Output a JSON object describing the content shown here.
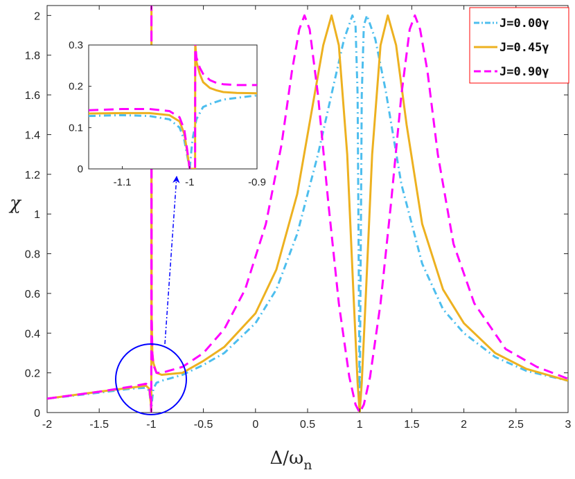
{
  "chart_data": {
    "type": "line",
    "xlabel": "Δ/ω",
    "xlabel_sub": "n",
    "ylabel": "χ",
    "xlim": [
      -2,
      3
    ],
    "ylim": [
      0,
      2.05
    ],
    "xticks": [
      "-2",
      "-1.5",
      "-1",
      "-0.5",
      "0",
      "0.5",
      "1",
      "1.5",
      "2",
      "2.5",
      "3"
    ],
    "yticks": [
      "0",
      "0.2",
      "0.4",
      "0.6",
      "0.8",
      "1",
      "1.2",
      "1.4",
      "1.6",
      "1.8",
      "2"
    ],
    "grid": false,
    "legend_position": "top-right",
    "series": [
      {
        "name": "J=0.00γ",
        "color": "#4dbeee",
        "style": "dash-dot",
        "x": [
          -2,
          -1.5,
          -1.2,
          -1.05,
          -1.02,
          -1.005,
          -1.0,
          -0.995,
          -0.98,
          -0.95,
          -0.9,
          -0.7,
          -0.5,
          -0.3,
          0,
          0.2,
          0.4,
          0.6,
          0.75,
          0.85,
          0.93,
          0.96,
          0.98,
          0.99,
          1.0,
          1.01,
          1.02,
          1.04,
          1.07,
          1.15,
          1.25,
          1.4,
          1.6,
          1.8,
          2.0,
          2.3,
          2.6,
          3.0
        ],
        "y": [
          0.07,
          0.1,
          0.12,
          0.125,
          0.11,
          0.05,
          0.0,
          0.05,
          0.12,
          0.15,
          0.16,
          0.19,
          0.24,
          0.3,
          0.45,
          0.62,
          0.9,
          1.3,
          1.65,
          1.88,
          2.0,
          1.95,
          1.6,
          0.8,
          0.0,
          0.8,
          1.6,
          1.95,
          2.0,
          1.88,
          1.62,
          1.15,
          0.75,
          0.52,
          0.4,
          0.28,
          0.21,
          0.16
        ]
      },
      {
        "name": "J=0.45γ",
        "color": "#edb120",
        "style": "solid",
        "x": [
          -2,
          -1.5,
          -1.2,
          -1.05,
          -1.02,
          -1.005,
          -1.0,
          -0.999,
          -0.997,
          -0.99,
          -0.98,
          -0.95,
          -0.9,
          -0.7,
          -0.5,
          -0.3,
          0,
          0.2,
          0.4,
          0.55,
          0.65,
          0.73,
          0.8,
          0.88,
          0.94,
          0.98,
          1.0,
          1.02,
          1.06,
          1.12,
          1.2,
          1.27,
          1.35,
          1.45,
          1.6,
          1.8,
          2.0,
          2.3,
          2.6,
          3.0
        ],
        "y": [
          0.07,
          0.105,
          0.125,
          0.135,
          0.12,
          0.05,
          0.0,
          2.05,
          0.5,
          0.3,
          0.25,
          0.2,
          0.19,
          0.2,
          0.26,
          0.33,
          0.5,
          0.72,
          1.1,
          1.55,
          1.85,
          2.0,
          1.85,
          1.3,
          0.6,
          0.15,
          0.0,
          0.15,
          0.6,
          1.3,
          1.85,
          2.0,
          1.85,
          1.45,
          0.95,
          0.62,
          0.45,
          0.3,
          0.22,
          0.16
        ]
      },
      {
        "name": "J=0.90γ",
        "color": "#ff00ff",
        "style": "dashed",
        "x": [
          -2,
          -1.5,
          -1.2,
          -1.05,
          -1.02,
          -1.005,
          -1.0,
          -0.999,
          -0.997,
          -0.99,
          -0.98,
          -0.95,
          -0.9,
          -0.7,
          -0.5,
          -0.3,
          -0.1,
          0.1,
          0.25,
          0.35,
          0.42,
          0.47,
          0.52,
          0.6,
          0.7,
          0.8,
          0.9,
          0.96,
          1.0,
          1.04,
          1.1,
          1.2,
          1.3,
          1.4,
          1.48,
          1.53,
          1.58,
          1.65,
          1.75,
          1.9,
          2.1,
          2.4,
          2.7,
          3.0
        ],
        "y": [
          0.07,
          0.105,
          0.13,
          0.145,
          0.13,
          0.06,
          0.0,
          2.05,
          0.5,
          0.3,
          0.24,
          0.2,
          0.2,
          0.23,
          0.3,
          0.42,
          0.62,
          0.95,
          1.35,
          1.72,
          1.93,
          2.0,
          1.93,
          1.6,
          1.05,
          0.55,
          0.18,
          0.04,
          0.0,
          0.04,
          0.18,
          0.55,
          1.05,
          1.6,
          1.93,
          2.0,
          1.93,
          1.72,
          1.3,
          0.85,
          0.55,
          0.32,
          0.23,
          0.17
        ]
      }
    ],
    "inset": {
      "xlim": [
        -1.15,
        -0.9
      ],
      "ylim": [
        0,
        0.3
      ],
      "xticks": [
        "-1.1",
        "-1",
        "-0.9"
      ],
      "yticks": [
        "0",
        "0.1",
        "0.2",
        "0.3"
      ],
      "series": [
        {
          "name": "J=0.00γ",
          "x": [
            -1.15,
            -1.1,
            -1.06,
            -1.03,
            -1.015,
            -1.008,
            -1.004,
            -1.0,
            -0.996,
            -0.99,
            -0.98,
            -0.965,
            -0.95,
            -0.93,
            -0.9
          ],
          "y": [
            0.128,
            0.13,
            0.128,
            0.12,
            0.1,
            0.07,
            0.035,
            0.0,
            0.07,
            0.12,
            0.15,
            0.16,
            0.168,
            0.172,
            0.178
          ],
          "clip_above": false
        },
        {
          "name": "J=0.45γ",
          "x": [
            -1.15,
            -1.1,
            -1.06,
            -1.03,
            -1.015,
            -1.008,
            -1.004,
            -1.0,
            -0.992,
            -0.9918,
            -0.9915,
            -0.99,
            -0.985,
            -0.98,
            -0.97,
            -0.96,
            -0.95,
            -0.93,
            -0.9
          ],
          "y": [
            0.134,
            0.135,
            0.135,
            0.13,
            0.115,
            0.085,
            0.045,
            0.0,
            0.0,
            0.31,
            0.3,
            0.26,
            0.23,
            0.21,
            0.196,
            0.19,
            0.186,
            0.184,
            0.183
          ],
          "clip_above": true
        },
        {
          "name": "J=0.90γ",
          "x": [
            -1.15,
            -1.1,
            -1.06,
            -1.03,
            -1.015,
            -1.008,
            -1.004,
            -1.0,
            -0.992,
            -0.9918,
            -0.9915,
            -0.99,
            -0.985,
            -0.98,
            -0.97,
            -0.96,
            -0.95,
            -0.93,
            -0.9
          ],
          "y": [
            0.142,
            0.145,
            0.145,
            0.14,
            0.125,
            0.095,
            0.05,
            0.0,
            0.0,
            0.31,
            0.3,
            0.27,
            0.245,
            0.23,
            0.215,
            0.208,
            0.205,
            0.203,
            0.203
          ],
          "clip_above": true
        }
      ]
    },
    "annotations": [
      {
        "type": "circle",
        "color": "#0000ff",
        "description": "highlight region near -1"
      },
      {
        "type": "arrow",
        "color": "#0000ff",
        "style": "dash-dot",
        "description": "points from circle to inset"
      }
    ]
  }
}
